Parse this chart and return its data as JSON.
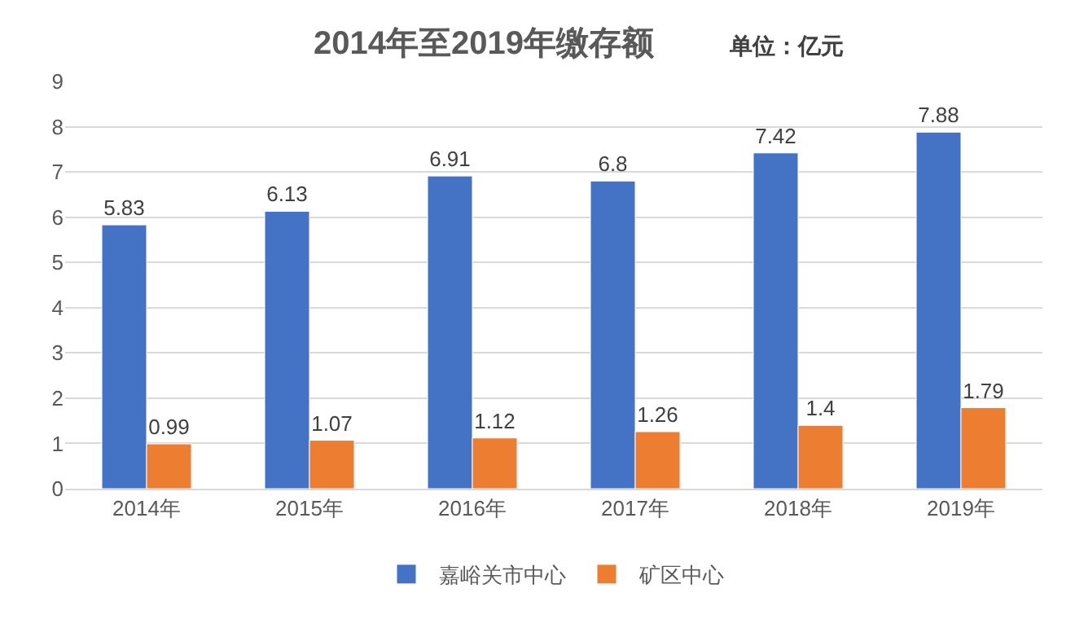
{
  "chart_data": {
    "type": "bar",
    "title": "2014年至2019年缴存额",
    "subtitle": "单位：亿元",
    "categories": [
      "2014年",
      "2015年",
      "2016年",
      "2017年",
      "2018年",
      "2019年"
    ],
    "series": [
      {
        "name": "嘉峪关市中心",
        "color": "#4472c4",
        "values": [
          5.83,
          6.13,
          6.91,
          6.8,
          7.42,
          7.88
        ]
      },
      {
        "name": "矿区中心",
        "color": "#ed7d31",
        "values": [
          0.99,
          1.07,
          1.12,
          1.26,
          1.4,
          1.79
        ]
      }
    ],
    "ylim": [
      0,
      9
    ],
    "yticks": [
      0,
      1,
      2,
      3,
      4,
      5,
      6,
      7,
      8,
      9
    ],
    "grid": "y",
    "legend": "bottom",
    "data_labels": true
  }
}
